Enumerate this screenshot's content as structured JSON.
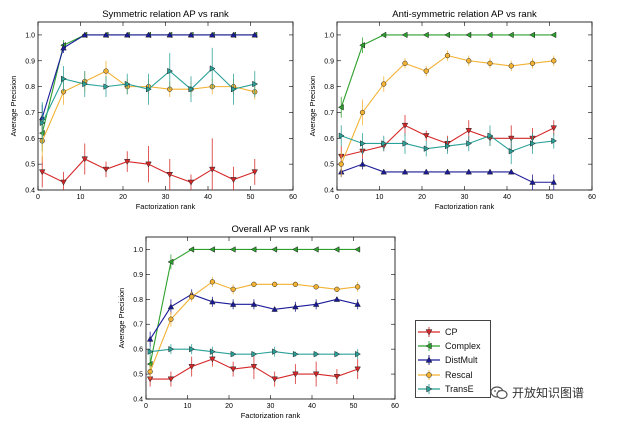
{
  "chart_data": [
    {
      "type": "line",
      "title": "Symmetric relation AP vs rank",
      "xlabel": "Factorization rank",
      "ylabel": "Average Precision",
      "xlim": [
        0,
        60
      ],
      "ylim": [
        0.4,
        1.05
      ],
      "xticks": [
        0,
        10,
        20,
        30,
        40,
        50,
        60
      ],
      "yticks": [
        0.4,
        0.5,
        0.6,
        0.7,
        0.8,
        0.9,
        1.0
      ],
      "x": [
        1,
        6,
        11,
        16,
        21,
        26,
        31,
        36,
        41,
        46,
        51
      ],
      "series": [
        {
          "name": "CP",
          "values": [
            0.47,
            0.43,
            0.52,
            0.48,
            0.51,
            0.5,
            0.46,
            0.43,
            0.48,
            0.44,
            0.47
          ],
          "errors": [
            0.06,
            0.04,
            0.06,
            0.03,
            0.04,
            0.07,
            0.06,
            0.03,
            0.12,
            0.05,
            0.05
          ]
        },
        {
          "name": "Complex",
          "values": [
            0.62,
            0.96,
            1.0,
            1.0,
            1.0,
            1.0,
            1.0,
            1.0,
            1.0,
            1.0,
            1.0
          ],
          "errors": [
            0.07,
            0.02,
            0,
            0,
            0,
            0,
            0,
            0,
            0,
            0,
            0
          ]
        },
        {
          "name": "DistMult",
          "values": [
            0.68,
            0.95,
            1.0,
            1.0,
            1.0,
            1.0,
            1.0,
            1.0,
            1.0,
            1.0,
            1.0
          ],
          "errors": [
            0.05,
            0.02,
            0,
            0,
            0,
            0,
            0,
            0,
            0,
            0,
            0
          ]
        },
        {
          "name": "Rescal",
          "values": [
            0.59,
            0.78,
            0.82,
            0.86,
            0.8,
            0.8,
            0.79,
            0.79,
            0.8,
            0.8,
            0.78
          ],
          "errors": [
            0.08,
            0.05,
            0.04,
            0.04,
            0.03,
            0.03,
            0.03,
            0.03,
            0.03,
            0.03,
            0.03
          ]
        },
        {
          "name": "TransE",
          "values": [
            0.66,
            0.83,
            0.81,
            0.8,
            0.81,
            0.79,
            0.86,
            0.79,
            0.87,
            0.79,
            0.81
          ],
          "errors": [
            0.08,
            0.05,
            0.05,
            0.04,
            0.04,
            0.06,
            0.07,
            0.05,
            0.08,
            0.06,
            0.05
          ]
        }
      ]
    },
    {
      "type": "line",
      "title": "Anti-symmetric relation AP vs rank",
      "xlabel": "Factorization rank",
      "ylabel": "Average Precision",
      "xlim": [
        0,
        60
      ],
      "ylim": [
        0.4,
        1.05
      ],
      "xticks": [
        0,
        10,
        20,
        30,
        40,
        50,
        60
      ],
      "yticks": [
        0.4,
        0.5,
        0.6,
        0.7,
        0.8,
        0.9,
        1.0
      ],
      "x": [
        1,
        6,
        11,
        16,
        21,
        26,
        31,
        36,
        41,
        46,
        51
      ],
      "series": [
        {
          "name": "CP",
          "values": [
            0.53,
            0.55,
            0.57,
            0.65,
            0.61,
            0.58,
            0.63,
            0.6,
            0.6,
            0.6,
            0.64
          ],
          "errors": [
            0.04,
            0.03,
            0.02,
            0.04,
            0.02,
            0.03,
            0.04,
            0.03,
            0.05,
            0.04,
            0.03
          ]
        },
        {
          "name": "Complex",
          "values": [
            0.72,
            0.96,
            1.0,
            1.0,
            1.0,
            1.0,
            1.0,
            1.0,
            1.0,
            1.0,
            1.0
          ],
          "errors": [
            0.04,
            0.03,
            0,
            0,
            0,
            0,
            0,
            0,
            0,
            0,
            0
          ]
        },
        {
          "name": "DistMult",
          "values": [
            0.47,
            0.5,
            0.47,
            0.47,
            0.47,
            0.47,
            0.47,
            0.47,
            0.47,
            0.43,
            0.43
          ],
          "errors": [
            0.02,
            0.02,
            0.01,
            0.01,
            0.01,
            0.01,
            0.01,
            0.01,
            0.01,
            0.03,
            0.03
          ]
        },
        {
          "name": "Rescal",
          "values": [
            0.5,
            0.7,
            0.81,
            0.89,
            0.86,
            0.92,
            0.9,
            0.89,
            0.88,
            0.89,
            0.9
          ],
          "errors": [
            0.05,
            0.05,
            0.03,
            0.02,
            0.02,
            0.02,
            0.02,
            0.02,
            0.02,
            0.02,
            0.02
          ]
        },
        {
          "name": "TransE",
          "values": [
            0.61,
            0.58,
            0.58,
            0.58,
            0.56,
            0.57,
            0.58,
            0.61,
            0.55,
            0.58,
            0.59
          ],
          "errors": [
            0.04,
            0.04,
            0.03,
            0.04,
            0.03,
            0.03,
            0.03,
            0.04,
            0.05,
            0.04,
            0.03
          ]
        }
      ]
    },
    {
      "type": "line",
      "title": "Overall AP vs rank",
      "xlabel": "Factorization rank",
      "ylabel": "Average Precision",
      "xlim": [
        0,
        60
      ],
      "ylim": [
        0.4,
        1.05
      ],
      "xticks": [
        0,
        10,
        20,
        30,
        40,
        50,
        60
      ],
      "yticks": [
        0.4,
        0.5,
        0.6,
        0.7,
        0.8,
        0.9,
        1.0
      ],
      "x": [
        1,
        6,
        11,
        16,
        21,
        26,
        31,
        36,
        41,
        46,
        51
      ],
      "series": [
        {
          "name": "CP",
          "values": [
            0.48,
            0.48,
            0.53,
            0.56,
            0.52,
            0.53,
            0.48,
            0.5,
            0.5,
            0.49,
            0.52
          ],
          "errors": [
            0.03,
            0.03,
            0.04,
            0.03,
            0.03,
            0.05,
            0.03,
            0.04,
            0.05,
            0.03,
            0.04
          ]
        },
        {
          "name": "Complex",
          "values": [
            0.54,
            0.95,
            1.0,
            1.0,
            1.0,
            1.0,
            1.0,
            1.0,
            1.0,
            1.0,
            1.0
          ],
          "errors": [
            0.03,
            0.03,
            0,
            0,
            0,
            0,
            0,
            0,
            0,
            0,
            0
          ]
        },
        {
          "name": "DistMult",
          "values": [
            0.64,
            0.77,
            0.82,
            0.79,
            0.78,
            0.78,
            0.76,
            0.77,
            0.78,
            0.8,
            0.78
          ],
          "errors": [
            0.03,
            0.03,
            0.02,
            0.02,
            0.02,
            0.02,
            0.01,
            0.02,
            0.02,
            0.01,
            0.02
          ]
        },
        {
          "name": "Rescal",
          "values": [
            0.51,
            0.72,
            0.81,
            0.87,
            0.84,
            0.86,
            0.86,
            0.86,
            0.85,
            0.84,
            0.85
          ],
          "errors": [
            0.03,
            0.03,
            0.02,
            0.02,
            0.02,
            0.01,
            0.01,
            0.01,
            0.01,
            0.01,
            0.02
          ]
        },
        {
          "name": "TransE",
          "values": [
            0.59,
            0.6,
            0.6,
            0.59,
            0.58,
            0.58,
            0.59,
            0.58,
            0.58,
            0.58,
            0.58
          ],
          "errors": [
            0.02,
            0.02,
            0.02,
            0.02,
            0.01,
            0.01,
            0.02,
            0.01,
            0.01,
            0.01,
            0.02
          ]
        }
      ]
    }
  ],
  "legend": {
    "items": [
      {
        "label": "CP",
        "color": "#d62728",
        "marker": "triangle-down"
      },
      {
        "label": "Complex",
        "color": "#2ca02c",
        "marker": "triangle-left"
      },
      {
        "label": "DistMult",
        "color": "#1a1a9a",
        "marker": "triangle-up"
      },
      {
        "label": "Rescal",
        "color": "#f2b233",
        "marker": "circle"
      },
      {
        "label": "TransE",
        "color": "#2aa198",
        "marker": "triangle-right"
      }
    ]
  },
  "watermark": {
    "text": "开放知识图谱",
    "icon": "wechat-icon"
  }
}
